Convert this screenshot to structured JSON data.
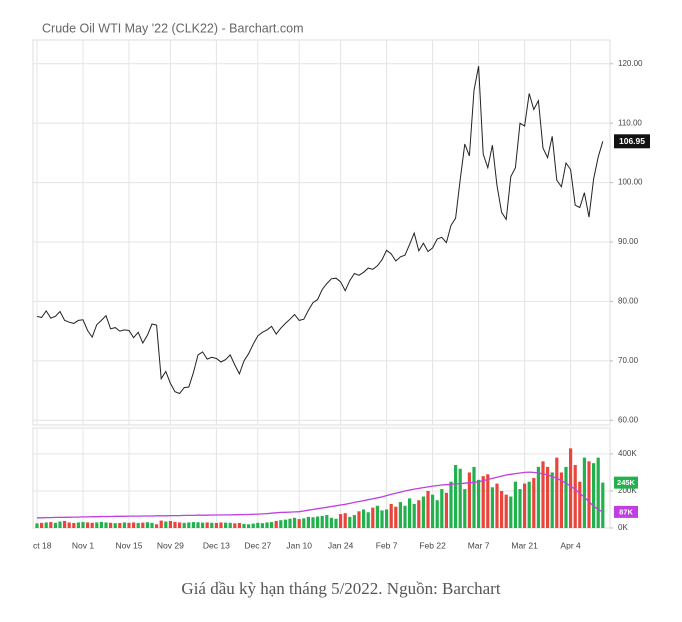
{
  "chart_data": [
    {
      "type": "line",
      "title": "Crude Oil WTI May '22 (CLK22) - Barchart.com",
      "categories": [
        "ct 18",
        null,
        null,
        null,
        null,
        null,
        null,
        null,
        null,
        null,
        "Nov 1",
        null,
        null,
        null,
        null,
        null,
        null,
        null,
        null,
        null,
        "Nov 15",
        null,
        null,
        null,
        null,
        null,
        null,
        null,
        null,
        "Nov 29",
        null,
        null,
        null,
        null,
        null,
        null,
        null,
        null,
        null,
        "Dec 13",
        null,
        null,
        null,
        null,
        null,
        null,
        null,
        null,
        "Dec 27",
        null,
        null,
        null,
        null,
        null,
        null,
        null,
        null,
        "Jan 10",
        null,
        null,
        null,
        null,
        null,
        null,
        null,
        null,
        "Jan 24",
        null,
        null,
        null,
        null,
        null,
        null,
        null,
        null,
        null,
        "Feb 7",
        null,
        null,
        null,
        null,
        null,
        null,
        null,
        null,
        null,
        "Feb 22",
        null,
        null,
        null,
        null,
        null,
        null,
        null,
        null,
        null,
        "Mar 7",
        null,
        null,
        null,
        null,
        null,
        null,
        null,
        null,
        null,
        "Mar 21",
        null,
        null,
        null,
        null,
        null,
        null,
        null,
        null,
        null,
        "Apr 4",
        null,
        null,
        null,
        null,
        null,
        null,
        null
      ],
      "values": [
        77.5,
        77.3,
        78.4,
        77.2,
        77.5,
        78.3,
        76.8,
        76.5,
        76.3,
        76.8,
        76.9,
        75.1,
        74.0,
        76.1,
        76.8,
        77.6,
        75.4,
        75.6,
        75.0,
        75.2,
        75.1,
        73.9,
        74.8,
        73.0,
        74.3,
        76.2,
        76.0,
        67.0,
        68.2,
        66.2,
        64.8,
        64.5,
        65.5,
        65.6,
        68.0,
        71.0,
        71.5,
        70.3,
        70.6,
        70.4,
        69.8,
        70.2,
        71.0,
        69.3,
        67.8,
        70.0,
        71.2,
        72.8,
        74.2,
        74.8,
        75.2,
        75.8,
        74.5,
        75.5,
        76.3,
        77.0,
        77.8,
        76.8,
        77.0,
        78.5,
        79.8,
        80.3,
        82.0,
        83.0,
        83.8,
        83.9,
        83.3,
        81.8,
        83.5,
        84.7,
        84.4,
        84.9,
        85.6,
        85.4,
        86.0,
        87.0,
        88.6,
        88.0,
        86.8,
        87.5,
        87.8,
        89.6,
        91.5,
        88.5,
        89.8,
        88.4,
        89.0,
        90.5,
        90.8,
        89.9,
        92.8,
        94.0,
        100.5,
        106.5,
        104.5,
        115.5,
        119.6,
        104.8,
        102.5,
        106.3,
        99.5,
        95.0,
        93.8,
        101.0,
        102.5,
        110.0,
        109.5,
        115.0,
        112.3,
        113.8,
        105.8,
        104.2,
        107.8,
        100.4,
        99.3,
        103.3,
        102.2,
        96.2,
        95.8,
        98.3,
        94.2,
        100.6,
        104.3,
        106.95
      ],
      "last_label": "106.95",
      "color": "#222222",
      "ylim": [
        59.2,
        124
      ],
      "yticks": [
        {
          "value": 60,
          "label": "60.00"
        },
        {
          "value": 70,
          "label": "70.00"
        },
        {
          "value": 80,
          "label": "80.00"
        },
        {
          "value": 90,
          "label": "90.00"
        },
        {
          "value": 100,
          "label": "100.00"
        },
        {
          "value": 110,
          "label": "110.00"
        },
        {
          "value": 120,
          "label": "120.00"
        }
      ],
      "grid": true
    },
    {
      "type": "bar",
      "series": [
        {
          "values": [
            25000,
            28000,
            30000,
            32000,
            28000,
            35000,
            38000,
            30000,
            27000,
            30000,
            32000,
            30000,
            28000,
            30000,
            33000,
            30000,
            28000,
            26000,
            27000,
            30000,
            28000,
            30000,
            27000,
            29000,
            31000,
            28000,
            20000,
            40000,
            35000,
            38000,
            33000,
            30000,
            28000,
            30000,
            32000,
            31000,
            29000,
            30000,
            28000,
            27000,
            30000,
            29000,
            28000,
            25000,
            27000,
            22000,
            20000,
            24000,
            28000,
            26000,
            30000,
            32000,
            38000,
            42000,
            45000,
            50000,
            55000,
            48000,
            52000,
            60000,
            58000,
            62000,
            65000,
            70000,
            55000,
            50000,
            75000,
            80000,
            60000,
            70000,
            90000,
            100000,
            85000,
            110000,
            120000,
            95000,
            100000,
            130000,
            115000,
            140000,
            120000,
            160000,
            130000,
            150000,
            170000,
            200000,
            180000,
            150000,
            210000,
            190000,
            250000,
            340000,
            320000,
            210000,
            300000,
            330000,
            260000,
            280000,
            290000,
            220000,
            240000,
            200000,
            180000,
            170000,
            250000,
            210000,
            240000,
            250000,
            270000,
            330000,
            360000,
            330000,
            300000,
            380000,
            300000,
            330000,
            430000,
            340000,
            250000,
            380000,
            360000,
            350000,
            380000,
            245000
          ],
          "last_label": "245K",
          "up_color": "#22b14c",
          "down_color": "#e8453c"
        },
        {
          "type": "line",
          "color": "#c13fe0",
          "last_label": "87K",
          "values": [
            55000,
            55000,
            56000,
            56000,
            57000,
            57000,
            58000,
            58000,
            59000,
            59000,
            60000,
            60000,
            61000,
            61000,
            62000,
            62000,
            62000,
            63000,
            63000,
            63000,
            64000,
            64000,
            64000,
            65000,
            65000,
            65000,
            66000,
            66000,
            66000,
            67000,
            67000,
            67000,
            68000,
            68000,
            68000,
            69000,
            69000,
            69000,
            70000,
            70000,
            70000,
            71000,
            71000,
            72000,
            72000,
            73000,
            73000,
            74000,
            75000,
            76000,
            78000,
            80000,
            82000,
            84000,
            85000,
            86000,
            87000,
            88000,
            92000,
            96000,
            100000,
            104000,
            108000,
            112000,
            116000,
            120000,
            124000,
            128000,
            133000,
            138000,
            143000,
            148000,
            153000,
            158000,
            163000,
            168000,
            175000,
            182000,
            188000,
            194000,
            200000,
            205000,
            210000,
            214000,
            218000,
            222000,
            226000,
            229000,
            232000,
            234000,
            236000,
            238000,
            240000,
            242000,
            244000,
            246000,
            250000,
            256000,
            262000,
            268000,
            274000,
            280000,
            286000,
            290000,
            294000,
            297000,
            300000,
            302000,
            300000,
            297000,
            292000,
            286000,
            278000,
            268000,
            256000,
            242000,
            226000,
            208000,
            188000,
            166000,
            142000,
            118000,
            100000,
            87000
          ]
        }
      ],
      "ylim": [
        0,
        540000
      ],
      "yticks": [
        {
          "value": 0,
          "label": "0K"
        },
        {
          "value": 200000,
          "label": "200K"
        },
        {
          "value": 400000,
          "label": "400K"
        }
      ],
      "grid": true
    }
  ],
  "caption": "Giá dầu kỳ hạn tháng 5/2022. Nguồn: Barchart"
}
